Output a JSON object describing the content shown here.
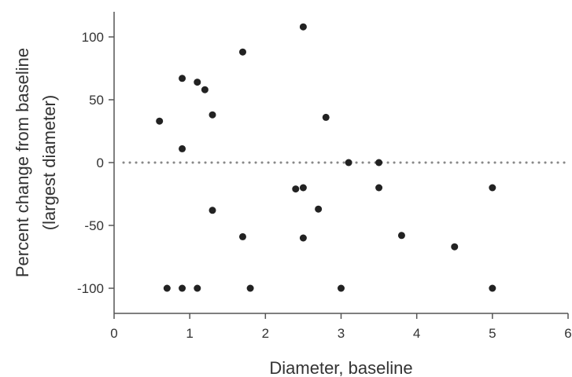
{
  "chart_data": {
    "type": "scatter",
    "xlabel": "Diameter, baseline",
    "ylabel_line1": "Percent change from baseline",
    "ylabel_line2": "(largest diameter)",
    "xlim": [
      0,
      6
    ],
    "ylim": [
      -120,
      120
    ],
    "x_ticks": [
      0,
      1,
      2,
      3,
      4,
      5,
      6
    ],
    "x_tick_labels": [
      "0",
      "1",
      "2",
      "3",
      "4",
      "5",
      "6"
    ],
    "y_ticks": [
      -100,
      -50,
      0,
      50,
      100
    ],
    "y_tick_labels": [
      "-100",
      "-50",
      "0",
      "50",
      "100"
    ],
    "reference_line": {
      "y": 0,
      "style": "dotted"
    },
    "grid": false,
    "point_color": "#222222",
    "points": [
      {
        "x": 0.6,
        "y": 33
      },
      {
        "x": 0.7,
        "y": -100
      },
      {
        "x": 0.9,
        "y": 67
      },
      {
        "x": 0.9,
        "y": 11
      },
      {
        "x": 0.9,
        "y": -100
      },
      {
        "x": 1.1,
        "y": 64
      },
      {
        "x": 1.1,
        "y": -100
      },
      {
        "x": 1.2,
        "y": 58
      },
      {
        "x": 1.3,
        "y": 38
      },
      {
        "x": 1.3,
        "y": -38
      },
      {
        "x": 1.7,
        "y": 88
      },
      {
        "x": 1.7,
        "y": -59
      },
      {
        "x": 1.8,
        "y": -100
      },
      {
        "x": 2.4,
        "y": -21
      },
      {
        "x": 2.5,
        "y": 108
      },
      {
        "x": 2.5,
        "y": -20
      },
      {
        "x": 2.5,
        "y": -60
      },
      {
        "x": 2.7,
        "y": -37
      },
      {
        "x": 2.8,
        "y": 36
      },
      {
        "x": 3.0,
        "y": -100
      },
      {
        "x": 3.1,
        "y": 0
      },
      {
        "x": 3.5,
        "y": 0
      },
      {
        "x": 3.5,
        "y": -20
      },
      {
        "x": 3.8,
        "y": -58
      },
      {
        "x": 4.5,
        "y": -67
      },
      {
        "x": 5.0,
        "y": -20
      },
      {
        "x": 5.0,
        "y": -100
      }
    ]
  }
}
